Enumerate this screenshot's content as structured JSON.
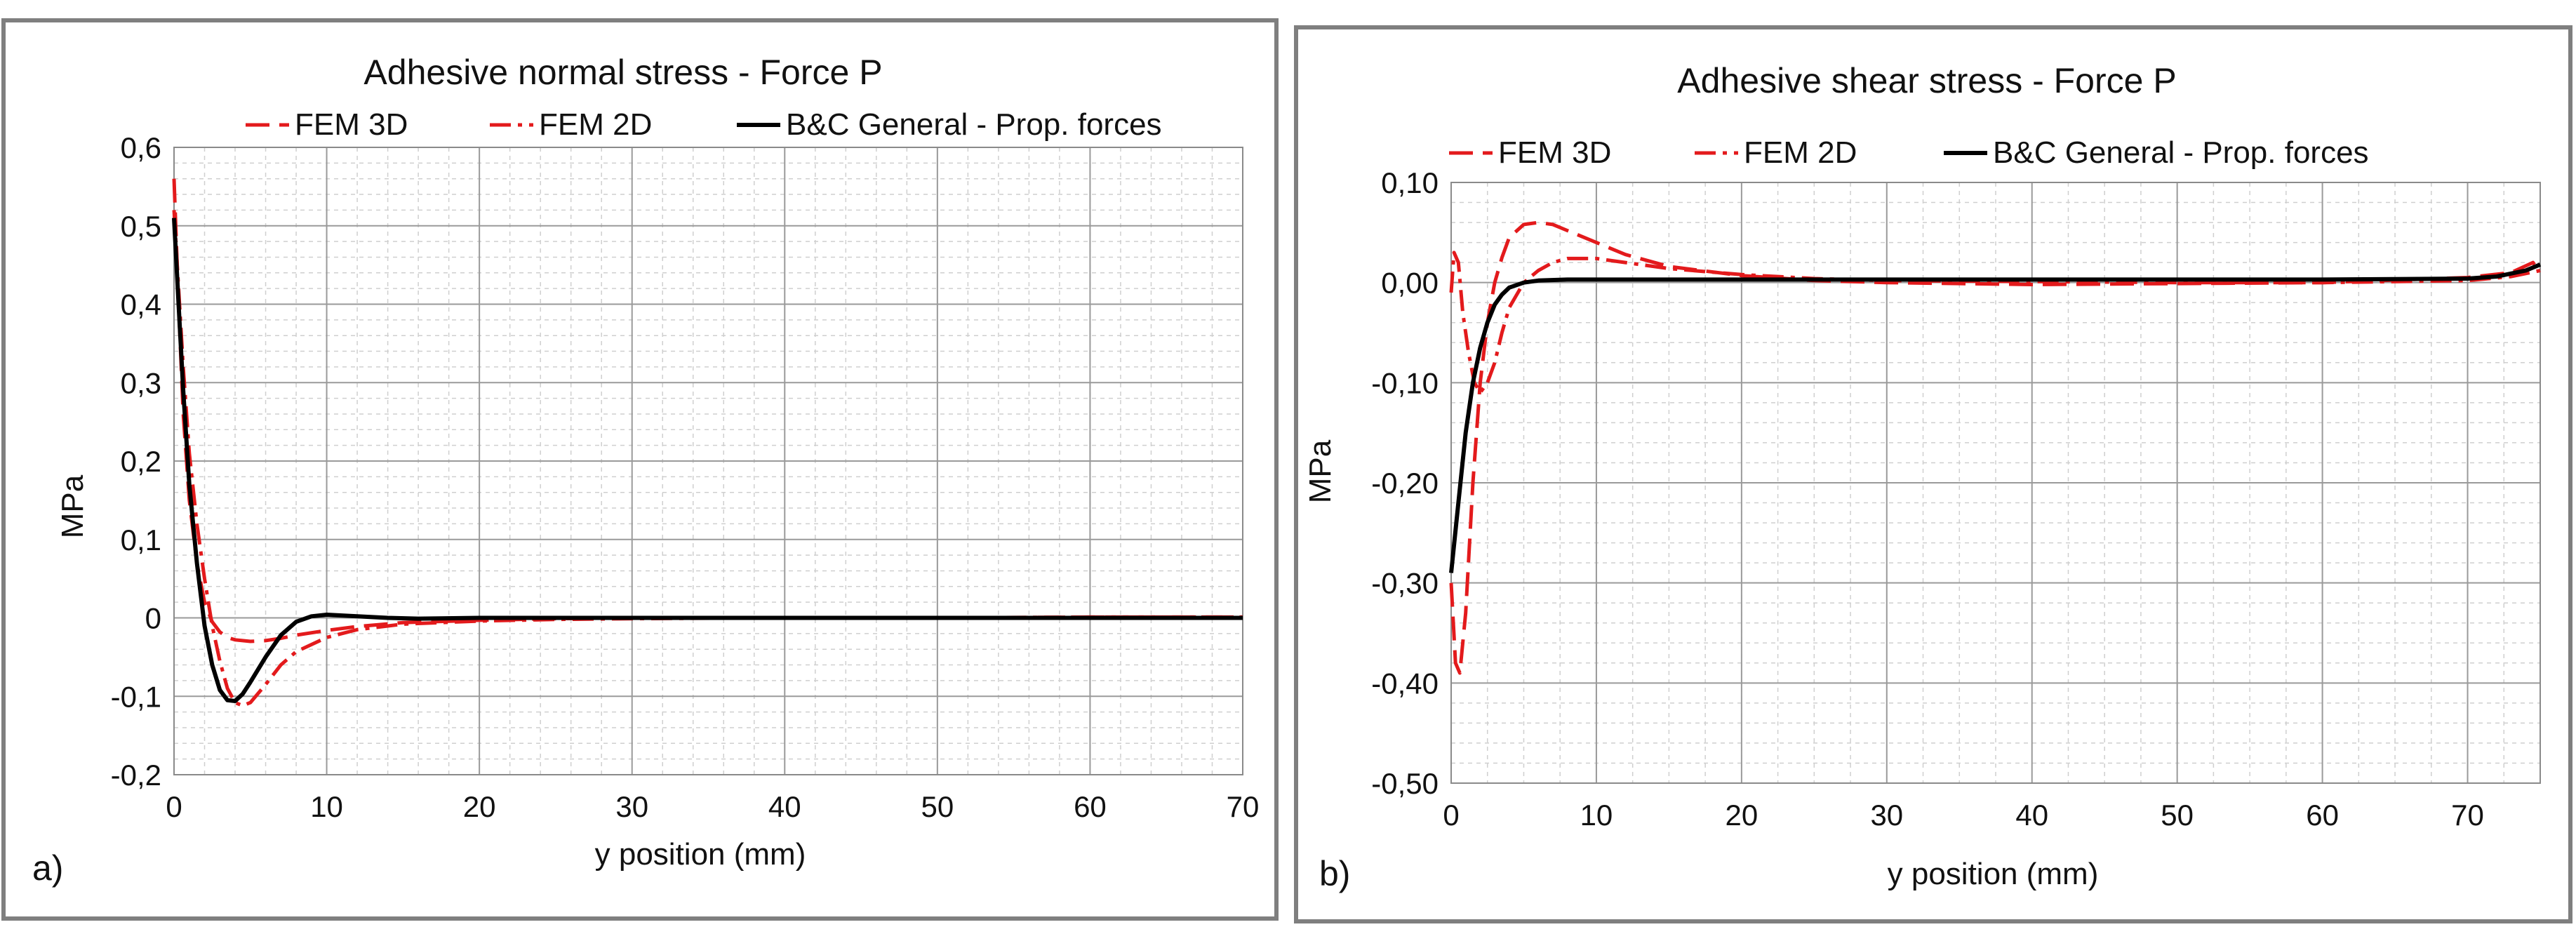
{
  "chart_data": [
    {
      "type": "line",
      "panel_label": "a)",
      "title": "Adhesive normal stress - Force P",
      "xlabel": "y position (mm)",
      "ylabel": "MPa",
      "xlim": [
        0,
        70
      ],
      "ylim": [
        -0.2,
        0.6
      ],
      "x_ticks": [
        0,
        10,
        20,
        30,
        40,
        50,
        60,
        70
      ],
      "y_ticks": [
        -0.2,
        -0.1,
        0,
        0.1,
        0.2,
        0.3,
        0.4,
        0.5,
        0.6
      ],
      "x_tick_labels": [
        "0",
        "10",
        "20",
        "30",
        "40",
        "50",
        "60",
        "70"
      ],
      "y_tick_labels": [
        "-0,2",
        "-0,1",
        "0",
        "0,1",
        "0,2",
        "0,3",
        "0,4",
        "0,5",
        "0,6"
      ],
      "minor_x_step": 2,
      "minor_y_step": 0.02,
      "grid": true,
      "legend_position": "top",
      "series": [
        {
          "name": "FEM 3D",
          "color": "#e31a1c",
          "style": "dashed",
          "x": [
            0,
            0.3,
            0.6,
            1,
            1.5,
            2,
            2.5,
            3,
            3.5,
            4,
            5,
            6,
            7,
            8,
            10,
            12,
            15,
            20,
            25,
            30,
            40,
            50,
            60,
            70
          ],
          "y": [
            0.56,
            0.4,
            0.26,
            0.15,
            0.07,
            0.02,
            -0.005,
            -0.018,
            -0.025,
            -0.028,
            -0.03,
            -0.029,
            -0.026,
            -0.022,
            -0.016,
            -0.011,
            -0.006,
            -0.003,
            -0.001,
            0,
            0,
            0,
            0.001,
            0.001
          ]
        },
        {
          "name": "FEM 2D",
          "color": "#e31a1c",
          "style": "dashdot",
          "x": [
            0,
            0.3,
            0.6,
            1,
            1.5,
            2,
            2.5,
            3,
            3.5,
            4,
            4.5,
            5,
            6,
            7,
            8,
            10,
            12,
            15,
            20,
            25,
            30,
            40,
            50,
            60,
            70
          ],
          "y": [
            0.52,
            0.42,
            0.32,
            0.21,
            0.12,
            0.05,
            -0.01,
            -0.055,
            -0.09,
            -0.108,
            -0.112,
            -0.108,
            -0.085,
            -0.06,
            -0.043,
            -0.025,
            -0.015,
            -0.008,
            -0.004,
            -0.002,
            -0.001,
            0,
            0,
            0.001,
            0.001
          ]
        },
        {
          "name": "B&C General - Prop. forces",
          "color": "#000000",
          "style": "solid",
          "x": [
            0,
            0.3,
            0.6,
            1,
            1.5,
            2,
            2.5,
            3,
            3.5,
            4,
            4.5,
            5,
            6,
            7,
            8,
            9,
            10,
            11,
            12,
            14,
            16,
            20,
            30,
            40,
            50,
            60,
            70
          ],
          "y": [
            0.51,
            0.4,
            0.29,
            0.17,
            0.07,
            -0.01,
            -0.06,
            -0.092,
            -0.105,
            -0.106,
            -0.097,
            -0.082,
            -0.05,
            -0.022,
            -0.005,
            0.002,
            0.004,
            0.003,
            0.002,
            0,
            -0.001,
            0,
            0,
            0,
            0,
            0,
            0
          ]
        }
      ]
    },
    {
      "type": "line",
      "panel_label": "b)",
      "title": "Adhesive shear stress - Force P",
      "xlabel": "y position (mm)",
      "ylabel": "MPa",
      "xlim": [
        0,
        75
      ],
      "ylim": [
        -0.5,
        0.1
      ],
      "x_ticks": [
        0,
        10,
        20,
        30,
        40,
        50,
        60,
        70
      ],
      "y_ticks": [
        -0.5,
        -0.4,
        -0.3,
        -0.2,
        -0.1,
        0,
        0.1
      ],
      "x_tick_labels": [
        "0",
        "10",
        "20",
        "30",
        "40",
        "50",
        "60",
        "70"
      ],
      "y_tick_labels": [
        "-0,50",
        "-0,40",
        "-0,30",
        "-0,20",
        "-0,10",
        "0,00",
        "0,10"
      ],
      "minor_x_step": 2.5,
      "minor_y_step": 0.02,
      "grid": true,
      "legend_position": "top",
      "series": [
        {
          "name": "FEM 3D",
          "color": "#e31a1c",
          "style": "dashed",
          "x": [
            0,
            0.3,
            0.6,
            1,
            1.5,
            2,
            2.5,
            3,
            3.5,
            4,
            5,
            6,
            7,
            8,
            10,
            12,
            15,
            20,
            25,
            30,
            40,
            50,
            60,
            70,
            73,
            74.5,
            75
          ],
          "y": [
            -0.3,
            -0.38,
            -0.39,
            -0.33,
            -0.2,
            -0.1,
            -0.04,
            0,
            0.025,
            0.045,
            0.058,
            0.06,
            0.058,
            0.052,
            0.04,
            0.028,
            0.016,
            0.007,
            0.002,
            0,
            -0.002,
            -0.001,
            0,
            0.005,
            0.01,
            0.02,
            0.01
          ]
        },
        {
          "name": "FEM 2D",
          "color": "#e31a1c",
          "style": "dashdot",
          "x": [
            0,
            0.2,
            0.5,
            0.8,
            1.2,
            1.6,
            2,
            2.5,
            3,
            3.5,
            4,
            5,
            6,
            7,
            8,
            10,
            12,
            15,
            20,
            25,
            30,
            40,
            50,
            60,
            70,
            73,
            75
          ],
          "y": [
            -0.01,
            0.03,
            0.02,
            -0.03,
            -0.07,
            -0.1,
            -0.11,
            -0.1,
            -0.08,
            -0.05,
            -0.025,
            0,
            0.012,
            0.02,
            0.024,
            0.024,
            0.02,
            0.014,
            0.008,
            0.004,
            0.002,
            0.001,
            0,
            0,
            0.002,
            0.006,
            0.012
          ]
        },
        {
          "name": "B&C General - Prop. forces",
          "color": "#000000",
          "style": "solid",
          "x": [
            0,
            0.5,
            1,
            1.5,
            2,
            2.5,
            3,
            3.5,
            4,
            5,
            6,
            8,
            10,
            20,
            30,
            40,
            50,
            60,
            70,
            72,
            74,
            75
          ],
          "y": [
            -0.29,
            -0.22,
            -0.15,
            -0.1,
            -0.065,
            -0.04,
            -0.022,
            -0.012,
            -0.005,
            0,
            0.002,
            0.003,
            0.003,
            0.003,
            0.003,
            0.003,
            0.003,
            0.003,
            0.004,
            0.006,
            0.012,
            0.018
          ]
        }
      ]
    }
  ]
}
